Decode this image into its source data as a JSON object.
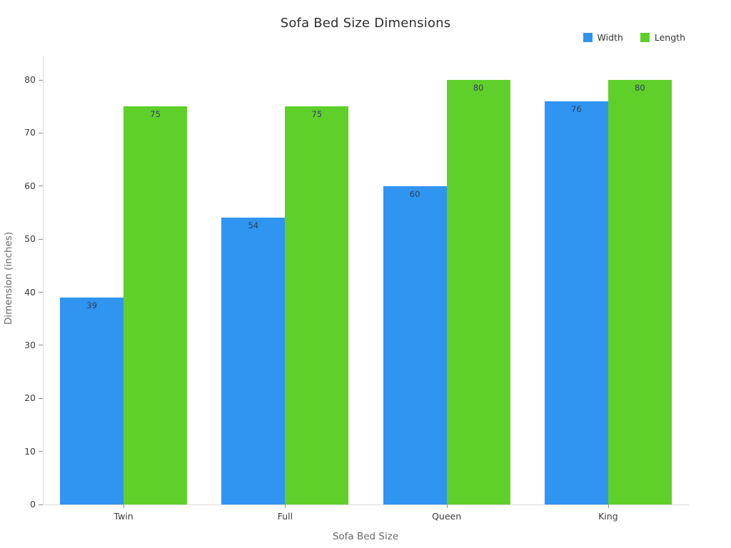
{
  "chart_data": {
    "type": "bar",
    "title": "Sofa Bed Size Dimensions",
    "categories": [
      "Twin",
      "Full",
      "Queen",
      "King"
    ],
    "series": [
      {
        "name": "Width",
        "color": "#3094f1",
        "values": [
          39,
          54,
          60,
          76
        ]
      },
      {
        "name": "Length",
        "color": "#5fd02a",
        "values": [
          75,
          75,
          80,
          80
        ]
      }
    ],
    "xlabel": "Sofa Bed Size",
    "ylabel": "Dimension (inches)",
    "ylim": [
      0,
      80
    ],
    "ytick_step": 10,
    "grid": false,
    "legend_position": "top-right",
    "bar_value_labels": "inside-top",
    "colors": {
      "background": "#ffffff",
      "axis_line": "#d9d9d9",
      "tick_mark": "#8f8f8f",
      "tick_text": "#3c3c3c",
      "axis_title_text": "#696969",
      "title_text": "#2f2f2f",
      "bar_label_text": "#2a3f5f"
    }
  }
}
